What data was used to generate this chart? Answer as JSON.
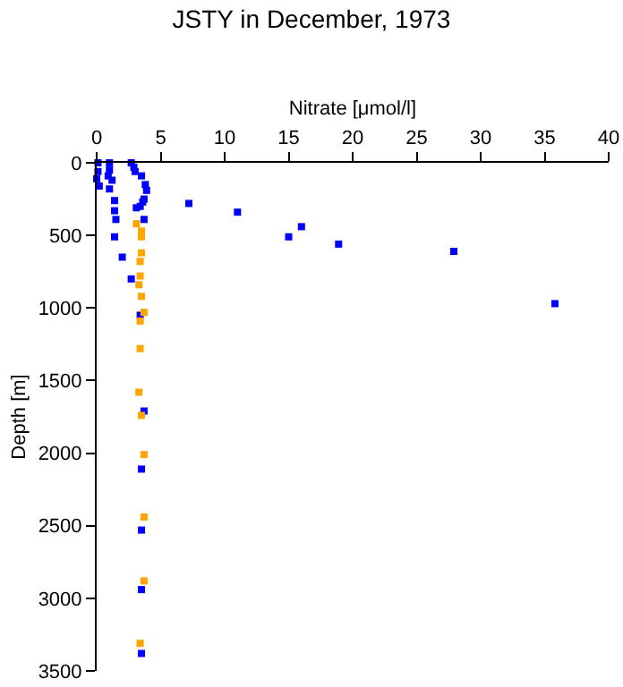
{
  "chart_data": {
    "type": "scatter",
    "title": "JSTY in December, 1973",
    "xlabel": "Nitrate [μmol/l]",
    "ylabel": "Depth [m]",
    "xlim": [
      0,
      40
    ],
    "xticks": [
      0,
      5,
      10,
      15,
      20,
      25,
      30,
      35,
      40
    ],
    "ylim": [
      3500,
      0
    ],
    "yticks": [
      0,
      500,
      1000,
      1500,
      2000,
      2500,
      3000,
      3500
    ],
    "grid": false,
    "marker": "square",
    "series": [
      {
        "color": "#0000ff",
        "x": [
          0.1,
          0.1,
          0.0,
          0.2,
          1.0,
          1.0,
          0.9,
          1.2,
          1.0,
          1.4,
          1.4,
          1.5,
          1.4,
          2.0,
          2.7,
          3.4,
          2.7,
          2.9,
          3.0,
          3.5,
          3.8,
          3.9,
          3.7,
          3.6,
          3.4,
          3.1,
          3.7,
          7.2,
          11.0,
          16.0,
          15.0,
          18.9,
          27.9,
          35.8,
          3.7,
          3.5,
          3.5,
          3.5,
          3.5
        ],
        "values": [
          0,
          60,
          110,
          160,
          0,
          50,
          90,
          120,
          180,
          260,
          330,
          390,
          510,
          650,
          800,
          1050,
          0,
          30,
          60,
          90,
          150,
          190,
          250,
          270,
          300,
          310,
          390,
          280,
          340,
          440,
          510,
          560,
          610,
          970,
          1710,
          2110,
          2530,
          2940,
          3380
        ]
      },
      {
        "color": "#ffa500",
        "x": [
          3.1,
          3.5,
          3.5,
          3.5,
          3.4,
          3.4,
          3.3,
          3.5,
          3.7,
          3.4,
          3.4,
          3.3,
          3.5,
          3.7,
          3.7,
          3.7,
          3.4
        ],
        "values": [
          420,
          470,
          510,
          620,
          680,
          780,
          840,
          920,
          1030,
          1090,
          1280,
          1580,
          1740,
          2010,
          2440,
          2880,
          3310
        ]
      }
    ]
  }
}
